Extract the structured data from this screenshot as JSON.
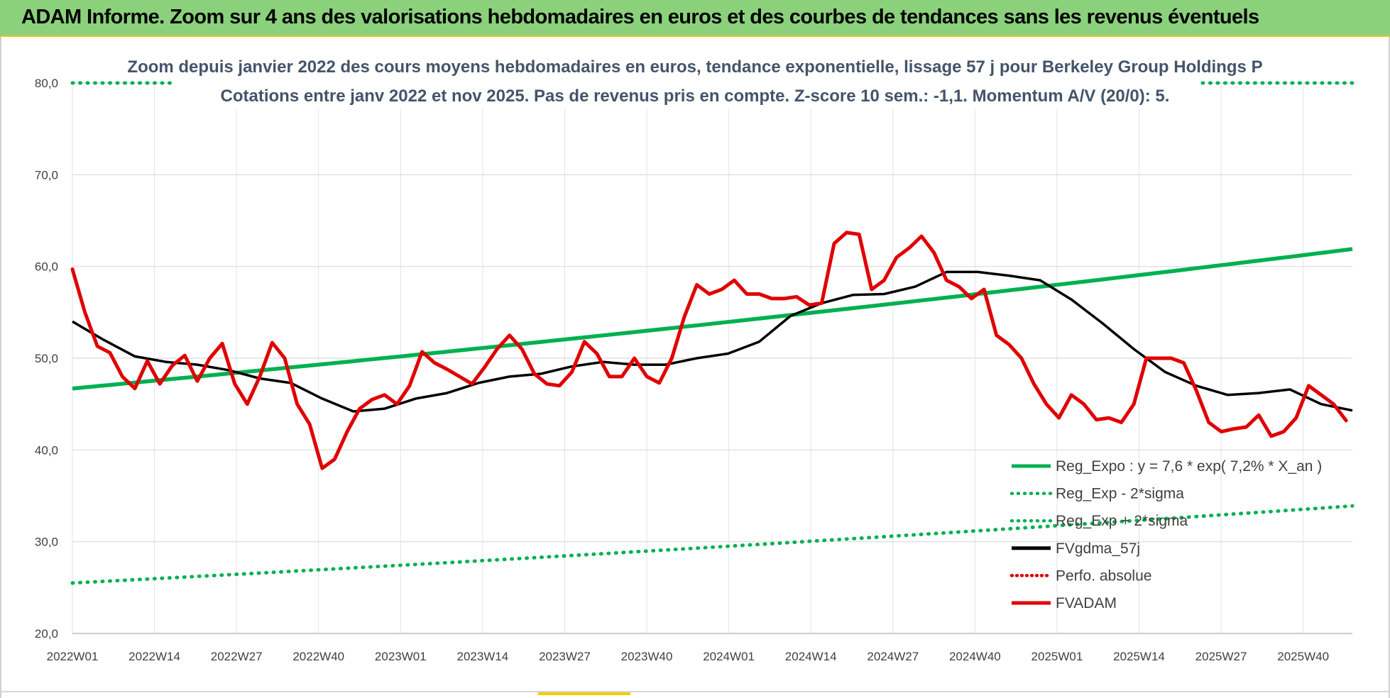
{
  "banner": {
    "title": "ADAM Informe. Zoom sur 4 ans des valorisations hebdomadaires en euros et des courbes de tendances sans les revenus éventuels"
  },
  "chart_data": {
    "type": "line",
    "title_line1": "Zoom depuis janvier 2022 des cours moyens hebdomadaires en euros, tendance exponentielle, lissage 57 j pour Berkeley Group Holdings P",
    "title_line2": "Cotations entre janv 2022 et nov 2025. Pas de revenus pris en compte. Z-score 10 sem.: -1,1. Momentum A/V (20/0): 5.",
    "x_tick_labels": [
      "2022W01",
      "2022W14",
      "2022W27",
      "2022W40",
      "2023W01",
      "2023W14",
      "2023W27",
      "2023W40",
      "2024W01",
      "2024W14",
      "2024W27",
      "2024W40",
      "2025W01",
      "2025W14",
      "2025W27",
      "2025W40"
    ],
    "x_range": [
      0,
      205
    ],
    "y_tick_labels": [
      "20,0",
      "30,0",
      "40,0",
      "50,0",
      "60,0",
      "70,0",
      "80,0"
    ],
    "y_ticks": [
      20,
      30,
      40,
      50,
      60,
      70,
      80
    ],
    "ylim": [
      20,
      80
    ],
    "grid": true,
    "legend_position": "bottom-right",
    "series": [
      {
        "name": "Reg_Expo : y = 7,6 * exp( 7,2% *  X_an )",
        "style": "solid",
        "color": "#00b050",
        "start": 46.7,
        "end": 61.9
      },
      {
        "name": "Reg_Exp - 2*sigma",
        "style": "dotted",
        "color": "#00b050",
        "start": 25.5,
        "end": 33.9
      },
      {
        "name": "Reg_Exp + 2*sigma",
        "style": "dotted",
        "color": "#00b050",
        "start": 80.0,
        "end": 80.0,
        "visible_ranges": [
          [
            0,
            16
          ],
          [
            181,
            205
          ]
        ]
      },
      {
        "name": "FVgdma_57j",
        "style": "solid",
        "color": "#000000",
        "x": [
          0,
          5,
          10,
          15,
          20,
          25,
          30,
          35,
          40,
          45,
          50,
          55,
          60,
          65,
          70,
          75,
          80,
          85,
          90,
          95,
          100,
          105,
          110,
          115,
          120,
          125,
          130,
          135,
          140,
          145,
          150,
          155,
          160,
          165,
          170,
          175,
          180,
          185,
          190,
          195,
          200,
          205
        ],
        "y": [
          54.0,
          52.0,
          50.2,
          49.6,
          49.3,
          48.7,
          47.8,
          47.3,
          45.6,
          44.2,
          44.5,
          45.6,
          46.2,
          47.3,
          48.0,
          48.3,
          49.1,
          49.6,
          49.3,
          49.3,
          50.0,
          50.5,
          51.8,
          54.6,
          56.0,
          56.9,
          57.0,
          57.8,
          59.4,
          59.4,
          59.0,
          58.5,
          56.4,
          53.8,
          51.0,
          48.5,
          47.0,
          46.0,
          46.2,
          46.6,
          45.0,
          44.3
        ]
      },
      {
        "name": "Perfo. absolue",
        "style": "dotted",
        "color": "#e00000"
      },
      {
        "name": "FVADAM",
        "style": "solid",
        "color": "#e00000",
        "x": [
          0,
          2,
          4,
          6,
          8,
          10,
          12,
          14,
          16,
          18,
          20,
          22,
          24,
          26,
          28,
          30,
          32,
          34,
          36,
          38,
          40,
          42,
          44,
          46,
          48,
          50,
          52,
          54,
          56,
          58,
          60,
          62,
          64,
          66,
          68,
          70,
          72,
          74,
          76,
          78,
          80,
          82,
          84,
          86,
          88,
          90,
          92,
          94,
          96,
          98,
          100,
          102,
          104,
          106,
          108,
          110,
          112,
          114,
          116,
          118,
          120,
          122,
          124,
          126,
          128,
          130,
          132,
          134,
          136,
          138,
          140,
          142,
          144,
          146,
          148,
          150,
          152,
          154,
          156,
          158,
          160,
          162,
          164,
          166,
          168,
          170,
          172,
          174,
          176,
          178,
          180,
          182,
          184,
          186,
          188,
          190,
          192,
          194,
          196,
          198,
          200,
          202,
          204
        ],
        "y": [
          59.7,
          55.0,
          51.3,
          50.6,
          48.0,
          46.7,
          49.7,
          47.2,
          49.2,
          50.3,
          47.5,
          50.0,
          51.6,
          47.2,
          45.0,
          48.0,
          51.7,
          50.0,
          45.0,
          42.8,
          38.0,
          39.0,
          42.0,
          44.5,
          45.5,
          46.0,
          45.0,
          47.0,
          50.7,
          49.5,
          48.8,
          48.0,
          47.2,
          49.0,
          51.0,
          52.5,
          51.0,
          48.3,
          47.2,
          47.0,
          48.5,
          51.8,
          50.5,
          48.0,
          48.0,
          50.0,
          48.0,
          47.3,
          50.0,
          54.5,
          58.0,
          57.0,
          57.5,
          58.5,
          57.0,
          57.0,
          56.5,
          56.5,
          56.7,
          55.8,
          56.0,
          62.5,
          63.7,
          63.5,
          57.5,
          58.5,
          61.0,
          62.0,
          63.3,
          61.5,
          58.5,
          57.8,
          56.5,
          57.5,
          52.5,
          51.5,
          50.0,
          47.2,
          45.0,
          43.5,
          46.0,
          45.0,
          43.3,
          43.5,
          43.0,
          45.0,
          50.0,
          50.0,
          50.0,
          49.5,
          46.5,
          43.0,
          42.0,
          42.3,
          42.5,
          43.8,
          41.5,
          42.0,
          43.5,
          47.0,
          46.0,
          45.0,
          43.2
        ]
      }
    ]
  }
}
